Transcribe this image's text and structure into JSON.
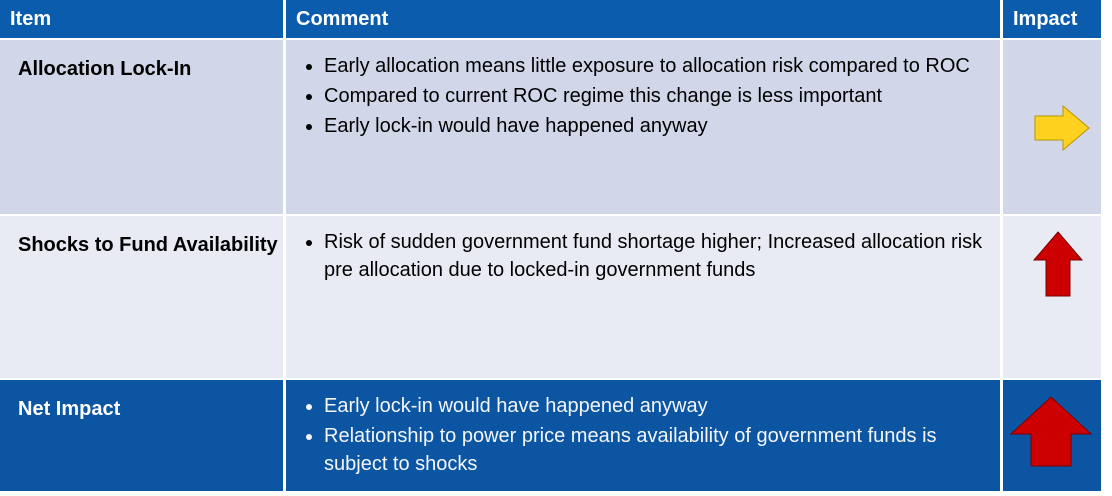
{
  "table": {
    "header": [
      "Item",
      "Comment",
      "Impact"
    ],
    "rows": [
      {
        "item": "Allocation Lock-In",
        "comments": [
          "Early allocation means little exposure to allocation risk compared to ROC",
          "Compared to current ROC regime this change is less important",
          "Early lock-in would have happened anyway"
        ]
      },
      {
        "item": "Shocks to Fund Availability",
        "comments": [
          "Risk of sudden government fund shortage higher; Increased allocation risk pre allocation due to locked-in government funds"
        ]
      },
      {
        "item": "Net Impact",
        "comments": [
          "Early lock-in would have happened anyway",
          "Relationship to power price means availability of government funds is subject to shocks"
        ]
      }
    ]
  }
}
